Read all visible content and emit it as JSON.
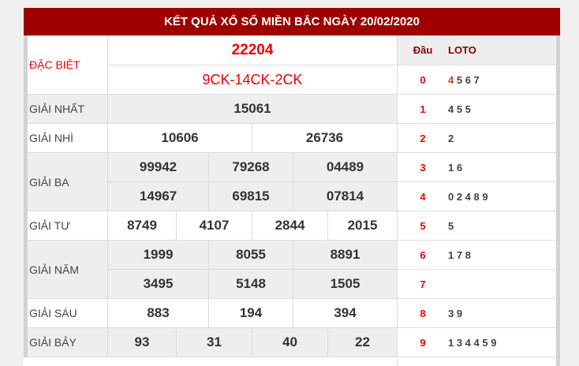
{
  "title": "KẾT QUẢ XỔ SỐ MIỀN BẮC NGÀY 20/02/2020",
  "prizes": {
    "db": {
      "label": "ĐẶC BIỆT",
      "number": "22204",
      "code": "9CK-14CK-2CK"
    },
    "g1": {
      "label": "GIẢI NHẤT",
      "numbers": [
        "15061"
      ]
    },
    "g2": {
      "label": "GIẢI NHÌ",
      "numbers": [
        "10606",
        "26736"
      ]
    },
    "g3": {
      "label": "GIẢI BA",
      "numbers": [
        "99942",
        "79268",
        "04489",
        "14967",
        "69815",
        "07814"
      ]
    },
    "g4": {
      "label": "GIẢI TƯ",
      "numbers": [
        "8749",
        "4107",
        "2844",
        "2015"
      ]
    },
    "g5": {
      "label": "GIẢI NĂM",
      "numbers": [
        "1999",
        "8055",
        "8891",
        "3495",
        "5148",
        "1505"
      ]
    },
    "g6": {
      "label": "GIẢI SÁU",
      "numbers": [
        "883",
        "194",
        "394"
      ]
    },
    "g7": {
      "label": "GIẢI BẢY",
      "numbers": [
        "93",
        "31",
        "40",
        "22"
      ]
    }
  },
  "loto": {
    "head_label": "Đầu",
    "loto_label": "LOTO",
    "rows": [
      {
        "dau": "0",
        "first": "4",
        "rest": "5 6 7"
      },
      {
        "dau": "1",
        "first": "",
        "rest": "4 5 5"
      },
      {
        "dau": "2",
        "first": "",
        "rest": "2"
      },
      {
        "dau": "3",
        "first": "",
        "rest": "1 6"
      },
      {
        "dau": "4",
        "first": "",
        "rest": "0 2 4 8 9"
      },
      {
        "dau": "5",
        "first": "",
        "rest": "5"
      },
      {
        "dau": "6",
        "first": "",
        "rest": "1 7 8"
      },
      {
        "dau": "7",
        "first": "",
        "rest": ""
      },
      {
        "dau": "8",
        "first": "",
        "rest": "3 9"
      },
      {
        "dau": "9",
        "first": "",
        "rest": "1 3 4 4 5 9"
      }
    ]
  },
  "colors": {
    "header": "#9e0000",
    "special": "#ff0000"
  }
}
